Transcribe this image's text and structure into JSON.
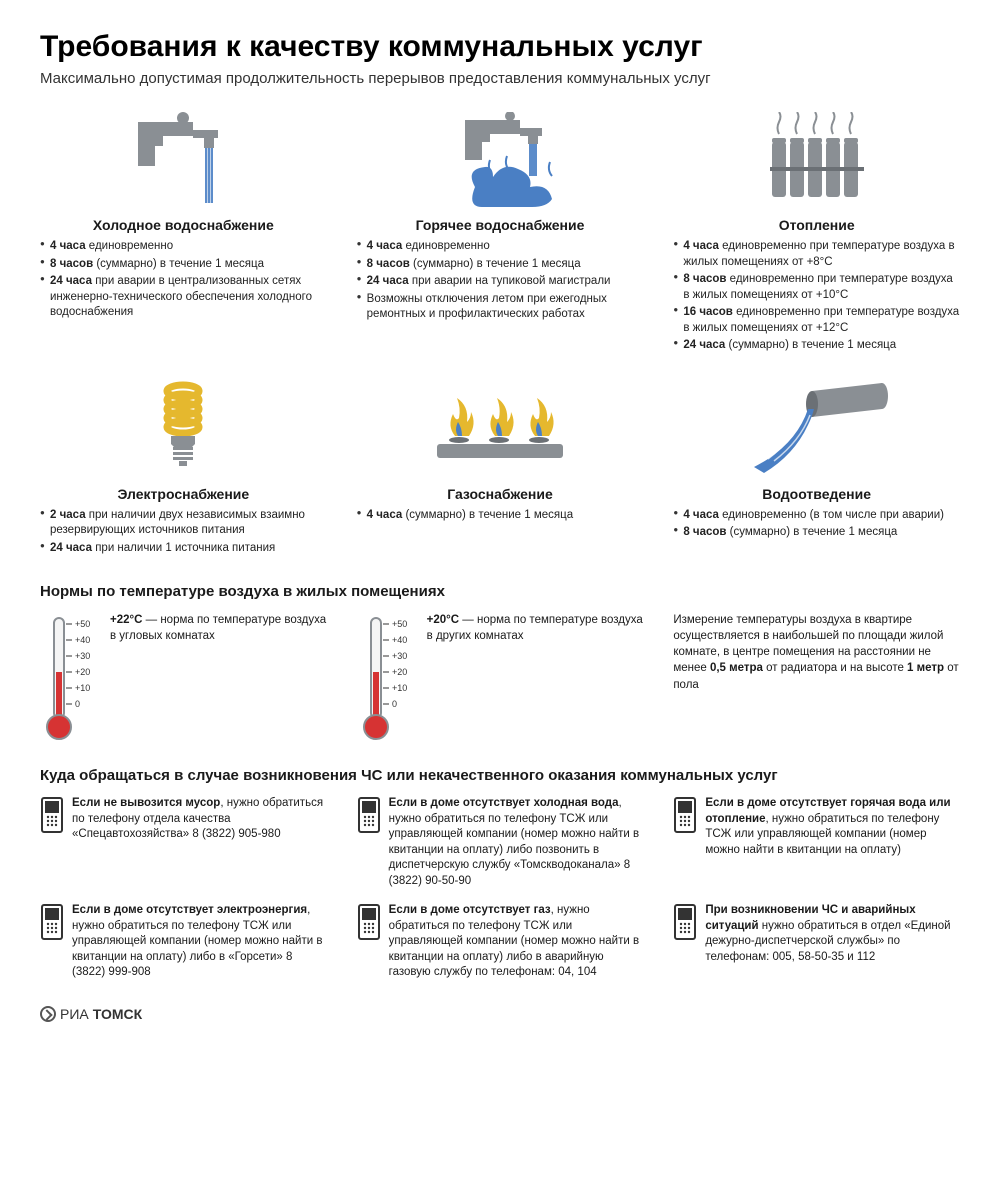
{
  "colors": {
    "gray": "#8a8f94",
    "blue": "#4a7fc4",
    "yellow": "#e5b82e",
    "red": "#d63333",
    "text": "#1a1a1a",
    "bg": "#ffffff"
  },
  "title": "Требования к качеству коммунальных услуг",
  "subtitle": "Максимально допустимая продолжительность перерывов предоставления коммунальных услуг",
  "services": [
    {
      "icon": "cold-water",
      "title": "Холодное водоснабжение",
      "items": [
        "<b>4 часа</b> единовременно",
        "<b>8 часов</b> (суммарно) в течение 1 месяца",
        "<b>24 часа</b> при аварии в централизованных сетях инженерно-технического обеспечения холодного водоснабжения"
      ]
    },
    {
      "icon": "hot-water",
      "title": "Горячее водоснабжение",
      "items": [
        "<b>4 часа</b> единовременно",
        "<b>8 часов</b> (суммарно) в течение 1 месяца",
        "<b>24 часа</b> при аварии на тупиковой магистрали",
        "Возможны отключения летом при ежегодных ремонтных и профилактических работах"
      ]
    },
    {
      "icon": "heating",
      "title": "Отопление",
      "items": [
        "<b>4 часа</b> единовременно при температуре воздуха в жилых помещениях от +8°С",
        "<b>8 часов</b> единовременно при температуре воздуха в жилых помещениях от +10°С",
        "<b>16 часов</b> единовременно при температуре воздуха в жилых помещениях от +12°С",
        "<b>24 часа</b> (суммарно) в течение 1 месяца"
      ]
    },
    {
      "icon": "electricity",
      "title": "Электроснабжение",
      "items": [
        "<b>2 часа</b> при наличии двух независимых взаимно резервирующих источников питания",
        "<b>24 часа</b> при наличии 1 источника питания"
      ]
    },
    {
      "icon": "gas",
      "title": "Газоснабжение",
      "items": [
        "<b>4 часа</b> (суммарно) в течение 1 месяца"
      ]
    },
    {
      "icon": "drainage",
      "title": "Водоотведение",
      "items": [
        "<b>4 часа</b> единовременно (в том числе при аварии)",
        "<b>8 часов</b> (суммарно) в течение 1 месяца"
      ]
    }
  ],
  "temp_section_title": "Нормы по температуре воздуха в жилых помещениях",
  "thermometer": {
    "ticks": [
      "+50",
      "+40",
      "+30",
      "+20",
      "+10",
      "0"
    ],
    "fill_to": 20,
    "tick_fontsize": 9,
    "bulb_color": "#d63333",
    "tube_color": "#d63333",
    "outline_color": "#8a8f94"
  },
  "temps": [
    {
      "temp": "+22°С",
      "text": "— норма по температуре воздуха в угловых комнатах"
    },
    {
      "temp": "+20°С",
      "text": "— норма по температуре воздуха в других комнатах"
    }
  ],
  "temp_note": "Измерение температуры воздуха в квартире осуществляется в наибольшей по площади жилой комнате, в центре помещения на расстоянии не менее <b>0,5 метра</b> от радиатора и на высоте <b>1 метр</b> от пола",
  "contacts_title": "Куда обращаться в случае возникновения ЧС или некачественного оказания коммунальных услуг",
  "contacts": [
    "<b>Если не вывозится мусор</b>, нужно обратиться по телефону отдела качества «Спецавтохозяйства» 8 (3822) 905-980",
    "<b>Если в доме отсутствует холодная вода</b>, нужно обратиться по телефону ТСЖ или управляющей компании (номер можно найти в квитанции на оплату) либо позвонить в диспетчерскую службу «Томскводоканала» 8 (3822) 90-50-90",
    "<b>Если в доме отсутствует горячая вода или отопление</b>, нужно обратиться по телефону ТСЖ или управляющей компании (номер можно найти в квитанции на оплату)",
    "<b>Если в доме отсутствует электроэнергия</b>, нужно обратиться по телефону ТСЖ или управляющей компании (номер можно найти в квитанции на оплату) либо в «Горсети» 8 (3822) 999-908",
    "<b>Если в доме отсутствует газ</b>, нужно обратиться по телефону ТСЖ или управляющей компании (номер можно найти в квитанции на оплату) либо в аварийную газовую службу по телефонам: 04, 104",
    "<b>При возникновении ЧС и аварийных ситуаций</b> нужно обратиться в отдел «Единой дежурно-диспетчерской службы» по телефонам: 005, 58-50-35 и 112"
  ],
  "footer_prefix": "РИА",
  "footer_bold": "ТОМСК"
}
